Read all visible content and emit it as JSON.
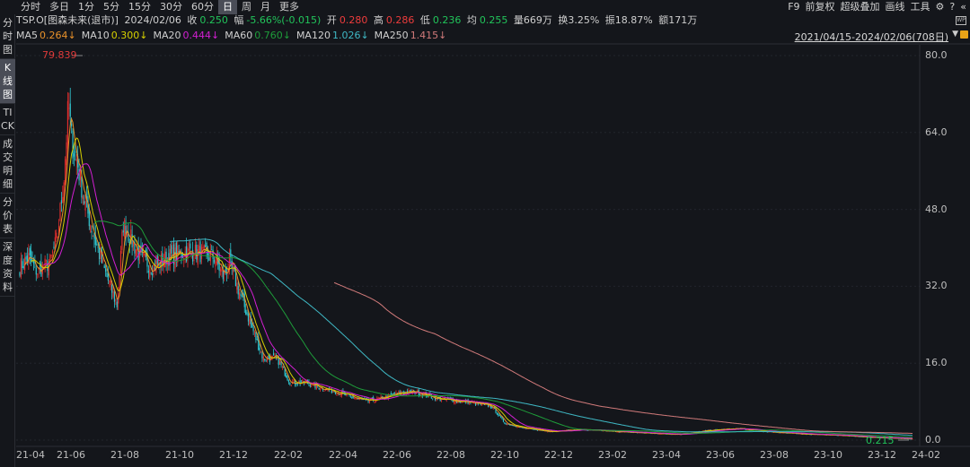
{
  "period_tabs": [
    "分时",
    "多日",
    "1分",
    "5分",
    "15分",
    "30分",
    "60分",
    "日",
    "周",
    "月",
    "更多"
  ],
  "active_tab": "日",
  "tools": {
    "f9": "F9",
    "adjust": "前复权",
    "overlay": "超级叠加",
    "draw": "画线",
    "tools": "工具",
    "settings_icon": "gear-icon",
    "help_icon": "help-icon",
    "collapse_icon": "double-chevron-left-icon"
  },
  "sidebar": [
    {
      "label": "分时图",
      "active": false
    },
    {
      "label": "K线图",
      "active": true
    },
    {
      "label": "TICK",
      "active": false
    },
    {
      "label": "成交明细",
      "active": false
    },
    {
      "label": "分价表",
      "active": false
    },
    {
      "label": "深度资料",
      "active": false
    }
  ],
  "quote": {
    "name": "TSP.O[图森未来(退市)]",
    "date": "2024/02/06",
    "close_label": "收",
    "close": "0.250",
    "change_label": "幅",
    "change": "-5.66%(-0.015)",
    "open_label": "开",
    "open": "0.280",
    "high_label": "高",
    "high": "0.286",
    "low_label": "低",
    "low": "0.236",
    "avg_label": "均",
    "avg": "0.255",
    "volume": "量669万",
    "turnover": "换3.25%",
    "amplitude": "振18.87%",
    "amount": "额171万"
  },
  "ma": [
    {
      "label": "MA5",
      "value": "0.264↓",
      "color": "#e8912a"
    },
    {
      "label": "MA10",
      "value": "0.300↓",
      "color": "#d6d000"
    },
    {
      "label": "MA20",
      "value": "0.444↓",
      "color": "#d21fd2"
    },
    {
      "label": "MA60",
      "value": "0.760↓",
      "color": "#1e9c3a"
    },
    {
      "label": "MA120",
      "value": "1.026↓",
      "color": "#3fb8c4"
    },
    {
      "label": "MA250",
      "value": "1.415↓",
      "color": "#d07a7a"
    }
  ],
  "date_range": "2021/04/15-2024/02/06(708日)",
  "colors": {
    "up": "#e02d2d",
    "down": "#2fc6cf"
  },
  "chart_data": {
    "type": "candlestick",
    "y_ticks": [
      "80.0",
      "64.0",
      "48.0",
      "32.0",
      "16.0",
      "0.0"
    ],
    "ylim": [
      0,
      80
    ],
    "x_ticks": [
      "21-04",
      "21-06",
      "21-08",
      "21-10",
      "21-12",
      "22-02",
      "22-04",
      "22-06",
      "22-08",
      "22-10",
      "22-12",
      "23-02",
      "23-04",
      "23-06",
      "23-08",
      "23-10",
      "23-12",
      "24-02"
    ],
    "max_label": "79.839",
    "min_label": "0.215",
    "trading_days": 708,
    "trend_points": [
      [
        "2021-04-15",
        36
      ],
      [
        "2021-04-25",
        38
      ],
      [
        "2021-05-05",
        35
      ],
      [
        "2021-05-20",
        37
      ],
      [
        "2021-05-28",
        42
      ],
      [
        "2021-06-05",
        55
      ],
      [
        "2021-06-10",
        70
      ],
      [
        "2021-06-14",
        62
      ],
      [
        "2021-06-20",
        58
      ],
      [
        "2021-06-28",
        50
      ],
      [
        "2021-07-10",
        42
      ],
      [
        "2021-07-20",
        36
      ],
      [
        "2021-08-01",
        30
      ],
      [
        "2021-08-05",
        28
      ],
      [
        "2021-08-12",
        45
      ],
      [
        "2021-08-20",
        42
      ],
      [
        "2021-09-01",
        38
      ],
      [
        "2021-09-15",
        36
      ],
      [
        "2021-10-01",
        38
      ],
      [
        "2021-10-20",
        39
      ],
      [
        "2021-11-05",
        39
      ],
      [
        "2021-11-25",
        38
      ],
      [
        "2021-12-05",
        34
      ],
      [
        "2021-12-12",
        37
      ],
      [
        "2021-12-25",
        30
      ],
      [
        "2022-01-10",
        22
      ],
      [
        "2022-01-20",
        17
      ],
      [
        "2022-02-05",
        17
      ],
      [
        "2022-02-20",
        12
      ],
      [
        "2022-03-10",
        12
      ],
      [
        "2022-03-25",
        11
      ],
      [
        "2022-04-15",
        10
      ],
      [
        "2022-05-01",
        9
      ],
      [
        "2022-05-20",
        8
      ],
      [
        "2022-06-10",
        9
      ],
      [
        "2022-07-01",
        10
      ],
      [
        "2022-07-15",
        10
      ],
      [
        "2022-08-10",
        8.5
      ],
      [
        "2022-09-10",
        8
      ],
      [
        "2022-10-10",
        7
      ],
      [
        "2022-10-25",
        3.5
      ],
      [
        "2022-11-15",
        2.5
      ],
      [
        "2022-12-15",
        1.8
      ],
      [
        "2023-01-20",
        2.2
      ],
      [
        "2023-03-01",
        1.8
      ],
      [
        "2023-04-15",
        1.4
      ],
      [
        "2023-05-15",
        1.2
      ],
      [
        "2023-06-15",
        2.0
      ],
      [
        "2023-07-20",
        2.4
      ],
      [
        "2023-08-20",
        1.8
      ],
      [
        "2023-10-01",
        1.3
      ],
      [
        "2023-11-15",
        1.0
      ],
      [
        "2023-12-20",
        0.6
      ],
      [
        "2024-01-20",
        0.4
      ],
      [
        "2024-02-06",
        0.25
      ]
    ]
  }
}
